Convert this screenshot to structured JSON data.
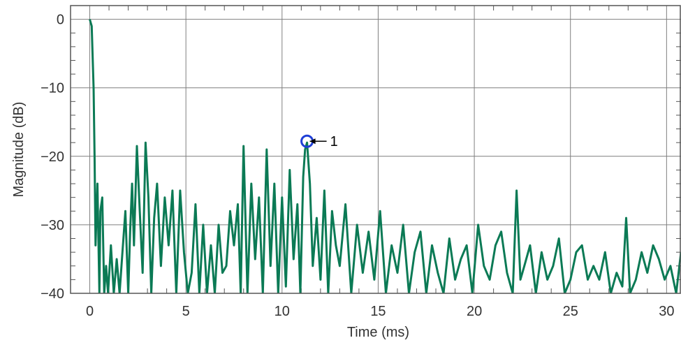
{
  "chart_data": {
    "type": "line",
    "title": "",
    "xlabel": "Time (ms)",
    "ylabel": "Magnitude (dB)",
    "xlim": [
      -1.0,
      30.75
    ],
    "ylim": [
      -40,
      2
    ],
    "xticks": [
      0,
      5,
      10,
      15,
      20,
      25,
      30
    ],
    "xtick_labels": [
      "0",
      "5",
      "10",
      "15",
      "20",
      "25",
      "30"
    ],
    "yticks": [
      0,
      -10,
      -20,
      -30,
      -40
    ],
    "ytick_labels": [
      "0",
      "−10",
      "−20",
      "−30",
      "−40"
    ],
    "grid": true,
    "legend": "none",
    "series_color": "#0b7a55",
    "marker_color": "#1f3fd6",
    "grid_color": "#7f7f7f",
    "frame_color": "#555555",
    "series": [
      {
        "name": "",
        "x": [
          0,
          0.1,
          0.2,
          0.25,
          0.3,
          0.4,
          0.5,
          0.55,
          0.65,
          0.75,
          0.85,
          0.95,
          1.1,
          1.25,
          1.4,
          1.55,
          1.7,
          1.85,
          2.0,
          2.1,
          2.2,
          2.3,
          2.45,
          2.6,
          2.75,
          2.9,
          3.05,
          3.2,
          3.35,
          3.5,
          3.7,
          3.9,
          4.1,
          4.3,
          4.5,
          4.7,
          4.9,
          5.1,
          5.3,
          5.5,
          5.7,
          5.9,
          6.1,
          6.3,
          6.5,
          6.7,
          6.9,
          7.1,
          7.3,
          7.5,
          7.7,
          7.85,
          8.0,
          8.2,
          8.4,
          8.6,
          8.8,
          9.0,
          9.2,
          9.4,
          9.6,
          9.8,
          10.0,
          10.2,
          10.4,
          10.6,
          10.8,
          10.95,
          11.1,
          11.2,
          11.3,
          11.45,
          11.6,
          11.8,
          12.0,
          12.2,
          12.4,
          12.6,
          12.8,
          13.0,
          13.3,
          13.6,
          13.9,
          14.2,
          14.5,
          14.8,
          15.1,
          15.4,
          15.7,
          16.0,
          16.3,
          16.6,
          16.9,
          17.2,
          17.5,
          17.8,
          18.1,
          18.4,
          18.7,
          19.0,
          19.3,
          19.6,
          19.9,
          20.2,
          20.5,
          20.8,
          21.1,
          21.4,
          21.7,
          22.0,
          22.2,
          22.4,
          22.6,
          22.9,
          23.2,
          23.5,
          23.8,
          24.1,
          24.4,
          24.7,
          25.0,
          25.3,
          25.6,
          25.9,
          26.2,
          26.5,
          26.8,
          27.1,
          27.4,
          27.7,
          27.9,
          28.1,
          28.4,
          28.7,
          29.0,
          29.3,
          29.6,
          29.9,
          30.2,
          30.5,
          30.75
        ],
        "y": [
          0,
          -1,
          -10,
          -20,
          -33,
          -24,
          -40,
          -28,
          -26,
          -40,
          -36,
          -40,
          -33,
          -40,
          -35,
          -40,
          -34,
          -28,
          -40,
          -31,
          -24,
          -33,
          -18.5,
          -28,
          -37,
          -18,
          -26,
          -40,
          -29,
          -24,
          -36,
          -26,
          -33,
          -25,
          -40,
          -25,
          -34,
          -40,
          -37,
          -27,
          -40,
          -30,
          -40,
          -33,
          -40,
          -30,
          -37,
          -36,
          -28,
          -33,
          -27,
          -40,
          -18.5,
          -40,
          -24,
          -35,
          -26,
          -40,
          -19,
          -36,
          -24,
          -40,
          -26,
          -39,
          -22,
          -35,
          -27,
          -40,
          -23,
          -19,
          -18,
          -24,
          -36,
          -29,
          -38,
          -25,
          -40,
          -28,
          -33,
          -36,
          -27,
          -40,
          -30,
          -37,
          -31,
          -38,
          -28,
          -40,
          -33,
          -37,
          -30,
          -40,
          -34,
          -31,
          -40,
          -33,
          -37,
          -40,
          -32,
          -38,
          -35,
          -33,
          -40,
          -30,
          -36,
          -38,
          -33,
          -31,
          -37,
          -40,
          -25,
          -38,
          -36,
          -33,
          -40,
          -34,
          -38,
          -36,
          -32,
          -40,
          -38,
          -34,
          -33,
          -38,
          -36,
          -38,
          -34,
          -40,
          -37,
          -39,
          -29,
          -40,
          -38,
          -34,
          -37,
          -33,
          -35,
          -38,
          -36,
          -40,
          -34
        ]
      }
    ],
    "annotations": [
      {
        "x": 11.3,
        "y": -17.8,
        "label": "1"
      }
    ]
  }
}
